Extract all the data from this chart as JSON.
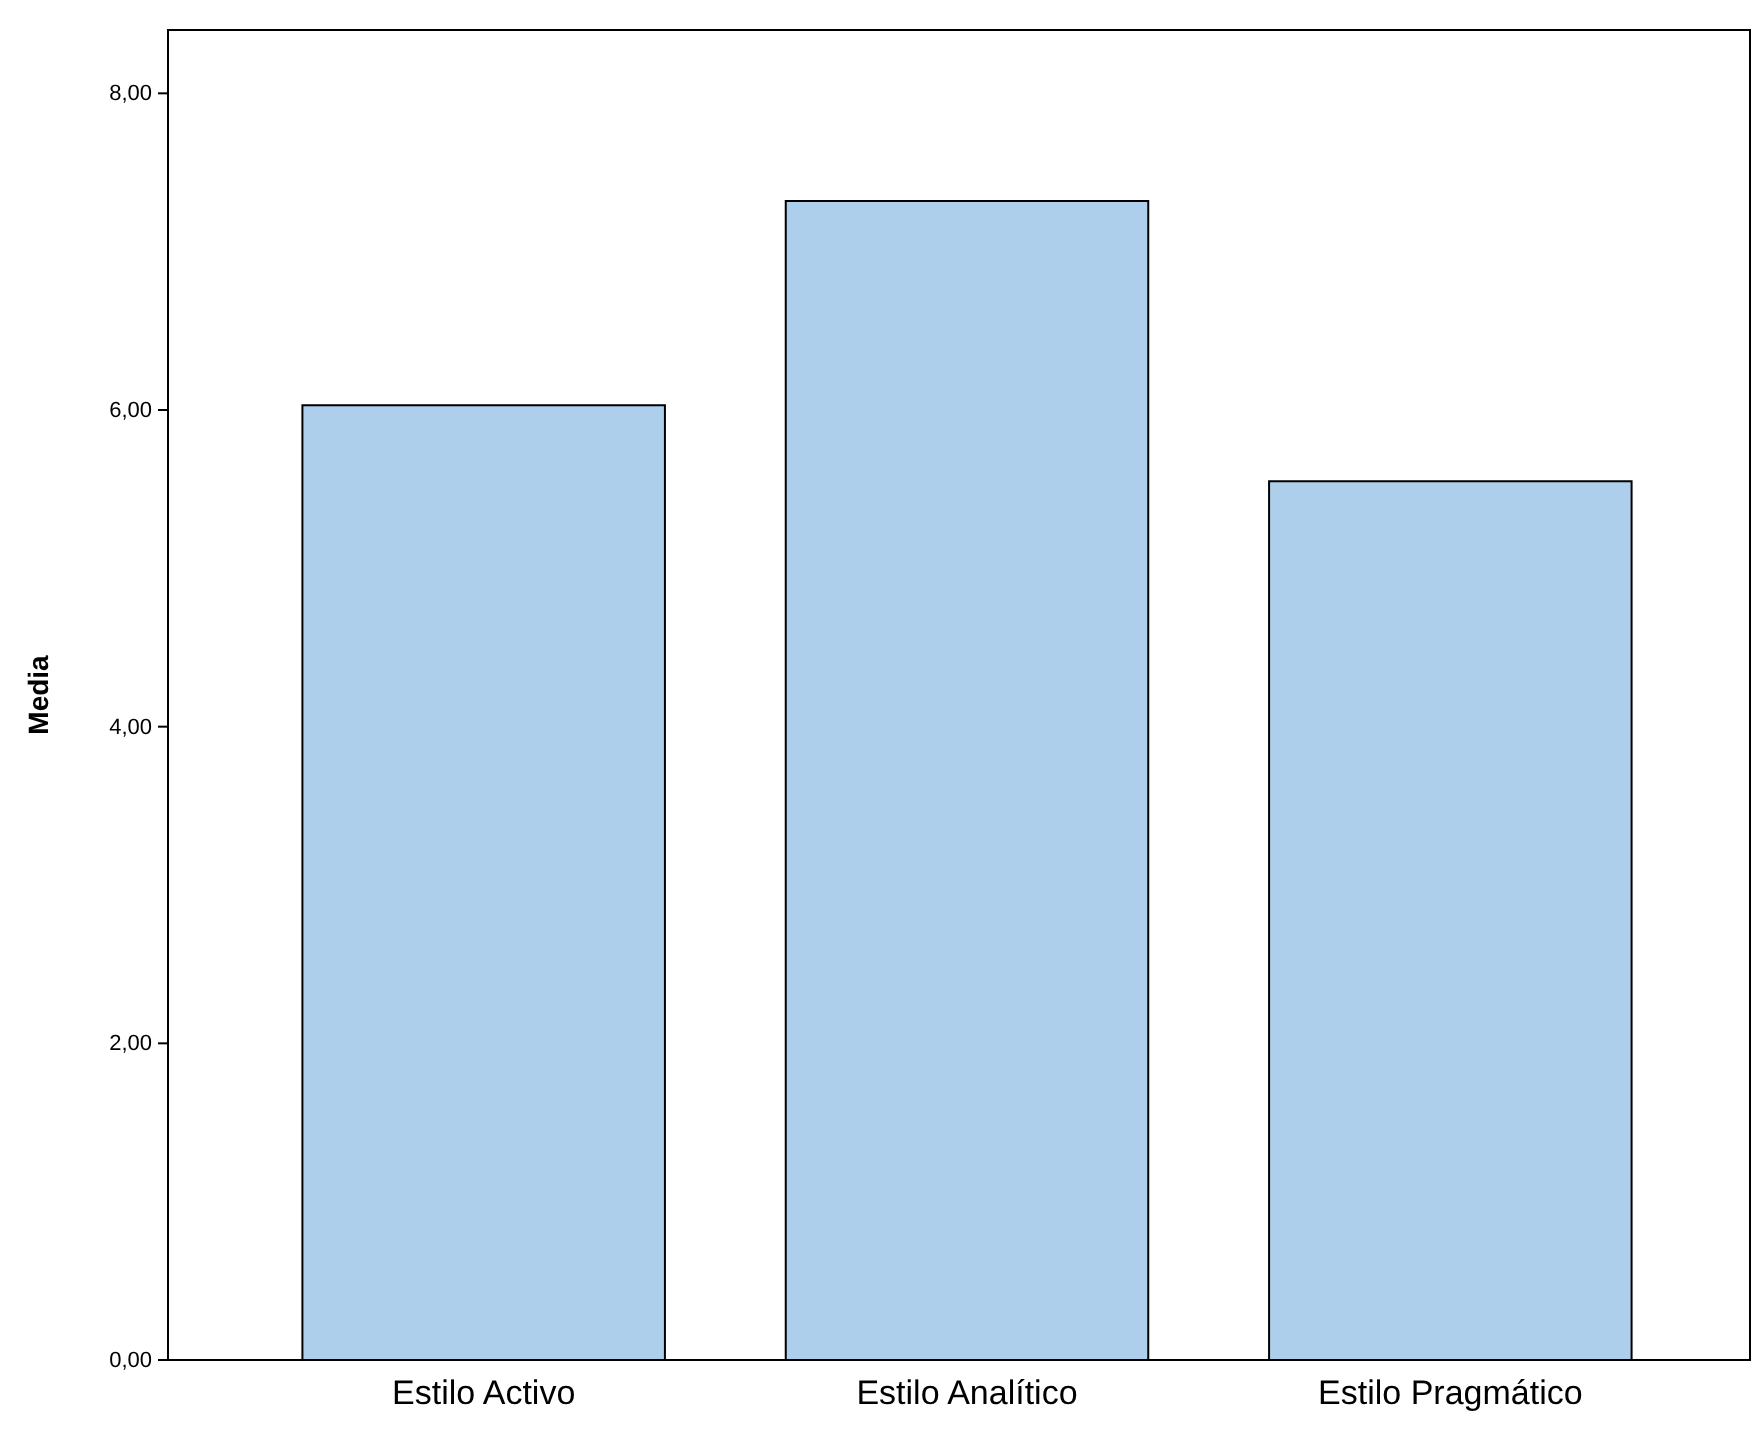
{
  "chart_data": {
    "type": "bar",
    "ylabel": "Media",
    "categories": [
      "Estilo Activo",
      "Estilo Analítico",
      "Estilo Pragmático"
    ],
    "values": [
      6.03,
      7.32,
      5.55
    ],
    "color": "#aecfeb",
    "ylim": [
      0,
      8.4
    ],
    "yticks": [
      {
        "value": 0,
        "label": "0,00"
      },
      {
        "value": 2,
        "label": "2,00"
      },
      {
        "value": 4,
        "label": "4,00"
      },
      {
        "value": 6,
        "label": "6,00"
      },
      {
        "value": 8,
        "label": "8,00"
      }
    ],
    "grid": false
  }
}
